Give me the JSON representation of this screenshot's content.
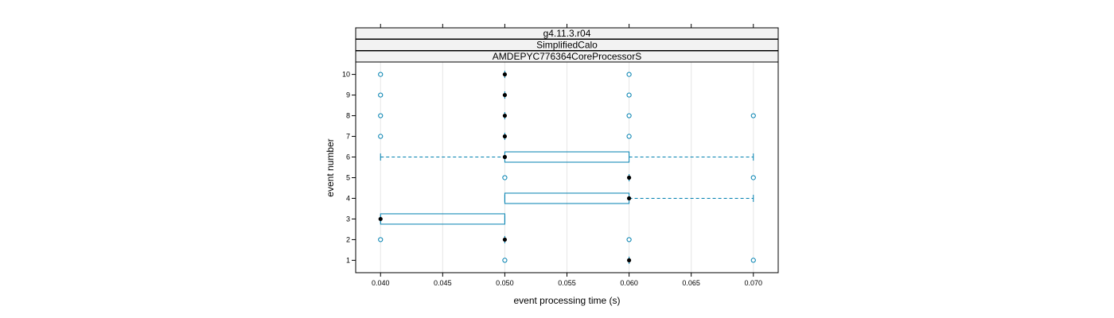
{
  "chart_data": {
    "type": "boxplot",
    "orientation": "horizontal",
    "strips": [
      "g4.11.3.r04",
      "SimplifiedCalo",
      "AMDEPYC776364CoreProcessorS"
    ],
    "xlabel": "event processing time (s)",
    "ylabel": "event number",
    "xlim": [
      0.038,
      0.072
    ],
    "ylim": [
      0.4,
      10.6
    ],
    "x_ticks": [
      0.04,
      0.045,
      0.05,
      0.055,
      0.06,
      0.065,
      0.07
    ],
    "x_tick_labels": [
      "0.040",
      "0.045",
      "0.050",
      "0.055",
      "0.060",
      "0.065",
      "0.070"
    ],
    "y_ticks": [
      1,
      2,
      3,
      4,
      5,
      6,
      7,
      8,
      9,
      10
    ],
    "y_tick_labels": [
      "1",
      "2",
      "3",
      "4",
      "5",
      "6",
      "7",
      "8",
      "9",
      "10"
    ],
    "grid": "vertical",
    "colors": {
      "box": "#0080b0",
      "outlier": "#0080b0",
      "median": "#000000",
      "grid": "#e6e6e6",
      "strip_bg": "#f2f2f2"
    },
    "boxes": [
      {
        "event": 1,
        "whisker_low": 0.06,
        "q1": 0.06,
        "median": 0.06,
        "q3": 0.06,
        "whisker_high": 0.06,
        "outliers": [
          0.05,
          0.07
        ]
      },
      {
        "event": 2,
        "whisker_low": 0.05,
        "q1": 0.05,
        "median": 0.05,
        "q3": 0.05,
        "whisker_high": 0.05,
        "outliers": [
          0.04,
          0.06
        ]
      },
      {
        "event": 3,
        "whisker_low": 0.04,
        "q1": 0.04,
        "median": 0.04,
        "q3": 0.05,
        "whisker_high": 0.05,
        "outliers": []
      },
      {
        "event": 4,
        "whisker_low": 0.05,
        "q1": 0.05,
        "median": 0.06,
        "q3": 0.06,
        "whisker_high": 0.07,
        "outliers": []
      },
      {
        "event": 5,
        "whisker_low": 0.06,
        "q1": 0.06,
        "median": 0.06,
        "q3": 0.06,
        "whisker_high": 0.06,
        "outliers": [
          0.05,
          0.07
        ]
      },
      {
        "event": 6,
        "whisker_low": 0.04,
        "q1": 0.05,
        "median": 0.05,
        "q3": 0.06,
        "whisker_high": 0.07,
        "outliers": []
      },
      {
        "event": 7,
        "whisker_low": 0.05,
        "q1": 0.05,
        "median": 0.05,
        "q3": 0.05,
        "whisker_high": 0.05,
        "outliers": [
          0.04,
          0.06
        ]
      },
      {
        "event": 8,
        "whisker_low": 0.05,
        "q1": 0.05,
        "median": 0.05,
        "q3": 0.05,
        "whisker_high": 0.05,
        "outliers": [
          0.04,
          0.06,
          0.07
        ]
      },
      {
        "event": 9,
        "whisker_low": 0.05,
        "q1": 0.05,
        "median": 0.05,
        "q3": 0.05,
        "whisker_high": 0.05,
        "outliers": [
          0.04,
          0.06
        ]
      },
      {
        "event": 10,
        "whisker_low": 0.05,
        "q1": 0.05,
        "median": 0.05,
        "q3": 0.05,
        "whisker_high": 0.05,
        "outliers": [
          0.04,
          0.06
        ]
      }
    ]
  }
}
